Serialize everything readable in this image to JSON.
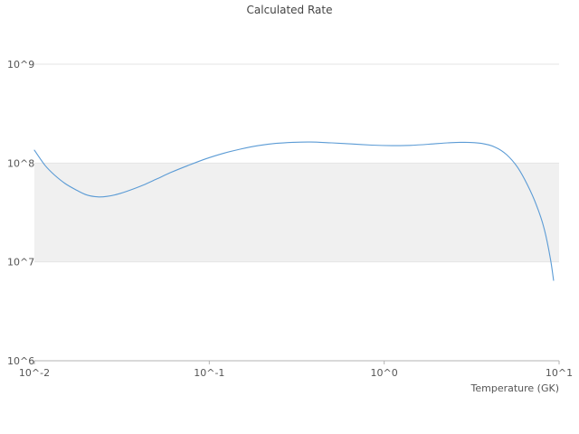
{
  "chart_data": {
    "type": "line",
    "title": "Calculated Rate",
    "xlabel": "Temperature (GK)",
    "ylabel": "",
    "xscale": "log",
    "yscale": "log",
    "xlim": [
      0.01,
      10
    ],
    "ylim": [
      1000000,
      1000000000
    ],
    "x_ticks": [
      {
        "label": "10^-2",
        "value": 0.01
      },
      {
        "label": "10^-1",
        "value": 0.1
      },
      {
        "label": "10^0",
        "value": 1
      },
      {
        "label": "10^1",
        "value": 10
      }
    ],
    "y_ticks": [
      {
        "label": "10^9",
        "value": 1000000000
      },
      {
        "label": "10^8",
        "value": 100000000
      },
      {
        "label": "10^7",
        "value": 10000000
      },
      {
        "label": "10^6",
        "value": 1000000
      }
    ],
    "shaded_band_y": [
      10000000,
      100000000
    ],
    "grid": "horizontal-decades",
    "legend": "none",
    "colors": {
      "line": "#5b9bd5",
      "band": "#f0f0f0",
      "grid": "#e5e5e5",
      "axis": "#b3b3b3",
      "tick_text": "#555555",
      "title_text": "#444444",
      "background": "#ffffff"
    },
    "series": [
      {
        "name": "calculated-rate",
        "x": [
          0.01,
          0.0115,
          0.013,
          0.015,
          0.0175,
          0.02,
          0.023,
          0.026,
          0.03,
          0.035,
          0.042,
          0.05,
          0.06,
          0.075,
          0.095,
          0.12,
          0.15,
          0.19,
          0.24,
          0.3,
          0.38,
          0.5,
          0.65,
          0.85,
          1.1,
          1.4,
          1.8,
          2.3,
          2.9,
          3.6,
          4.3,
          5.0,
          5.8,
          6.6,
          7.4,
          8.2,
          8.9,
          9.3
        ],
        "y": [
          135000000.0,
          95000000.0,
          76000000.0,
          62000000.0,
          53000000.0,
          47500000.0,
          45500000.0,
          46000000.0,
          48500000.0,
          53000000.0,
          60000000.0,
          69000000.0,
          80000000.0,
          94000000.0,
          110000000.0,
          125000000.0,
          138000000.0,
          150000000.0,
          158000000.0,
          162000000.0,
          163000000.0,
          160000000.0,
          156000000.0,
          152000000.0,
          150000000.0,
          151000000.0,
          155000000.0,
          160000000.0,
          162000000.0,
          158000000.0,
          145000000.0,
          122000000.0,
          90000000.0,
          60000000.0,
          38000000.0,
          22000000.0,
          11000000.0,
          6500000.0
        ]
      }
    ]
  }
}
